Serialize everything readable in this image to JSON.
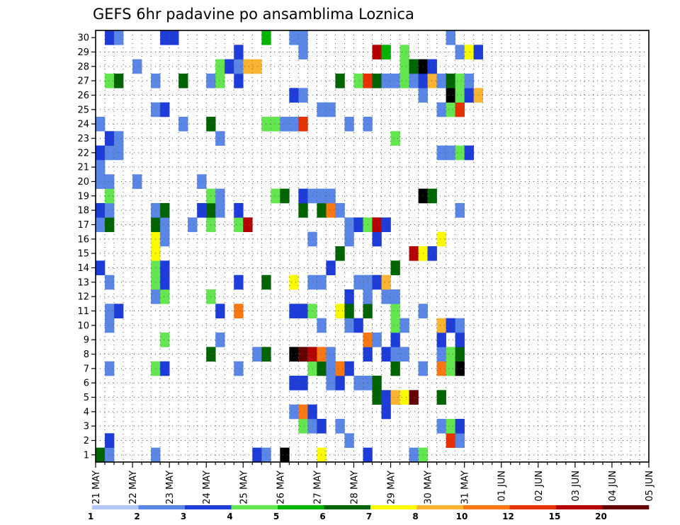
{
  "chart_data": {
    "type": "heatmap",
    "title": "GEFS 6hr padavine po ansamblima Loznica",
    "x_tick_labels": [
      "21 MAY",
      "22 MAY",
      "23 MAY",
      "24 MAY",
      "25 MAY",
      "26 MAY",
      "27 MAY",
      "28 MAY",
      "29 MAY",
      "30 MAY",
      "31 MAY",
      "01 JUN",
      "02 JUN",
      "03 JUN",
      "04 JUN",
      "05 JUN"
    ],
    "y_tick_labels": [
      "1",
      "2",
      "3",
      "4",
      "5",
      "6",
      "7",
      "8",
      "9",
      "10",
      "11",
      "12",
      "13",
      "14",
      "15",
      "16",
      "17",
      "18",
      "19",
      "20",
      "21",
      "22",
      "23",
      "24",
      "25",
      "26",
      "27",
      "28",
      "29",
      "30"
    ],
    "time_step_hours": 6,
    "members": 30,
    "legend": {
      "thresholds": [
        "1",
        "2",
        "3",
        "4",
        "5",
        "6",
        "7",
        "8",
        "10",
        "12",
        "15",
        "20"
      ],
      "colors": [
        "#b4c8f5",
        "#5a87e6",
        "#1e3cd7",
        "#64e650",
        "#00b400",
        "#006400",
        "#fafa00",
        "#fab432",
        "#fa7814",
        "#e63200",
        "#b40000",
        "#640000"
      ]
    },
    "cells": [
      [
        1,
        1,
        5
      ],
      [
        1,
        2,
        1
      ],
      [
        1,
        7,
        1
      ],
      [
        1,
        18,
        2
      ],
      [
        1,
        19,
        1
      ],
      [
        1,
        21,
        12
      ],
      [
        1,
        25,
        6
      ],
      [
        1,
        30,
        2
      ],
      [
        1,
        35,
        1
      ],
      [
        1,
        36,
        3
      ],
      [
        2,
        2,
        2
      ],
      [
        2,
        28,
        1
      ],
      [
        2,
        39,
        9
      ],
      [
        2,
        40,
        1
      ],
      [
        3,
        23,
        3
      ],
      [
        3,
        24,
        1
      ],
      [
        3,
        25,
        2
      ],
      [
        3,
        27,
        1
      ],
      [
        3,
        38,
        1
      ],
      [
        3,
        39,
        3
      ],
      [
        3,
        40,
        2
      ],
      [
        4,
        22,
        1
      ],
      [
        4,
        23,
        8
      ],
      [
        4,
        24,
        2
      ],
      [
        4,
        32,
        2
      ],
      [
        5,
        31,
        5
      ],
      [
        5,
        32,
        2
      ],
      [
        5,
        33,
        7
      ],
      [
        5,
        34,
        6
      ],
      [
        5,
        35,
        11
      ],
      [
        5,
        38,
        5
      ],
      [
        6,
        22,
        2
      ],
      [
        6,
        23,
        2
      ],
      [
        6,
        26,
        1
      ],
      [
        6,
        27,
        2
      ],
      [
        6,
        29,
        1
      ],
      [
        6,
        30,
        1
      ],
      [
        6,
        31,
        5
      ],
      [
        7,
        2,
        1
      ],
      [
        7,
        7,
        3
      ],
      [
        7,
        8,
        2
      ],
      [
        7,
        16,
        1
      ],
      [
        7,
        24,
        3
      ],
      [
        7,
        25,
        5
      ],
      [
        7,
        26,
        1
      ],
      [
        7,
        27,
        8
      ],
      [
        7,
        28,
        2
      ],
      [
        7,
        33,
        5
      ],
      [
        7,
        36,
        1
      ],
      [
        7,
        38,
        8
      ],
      [
        7,
        39,
        3
      ],
      [
        7,
        40,
        12
      ],
      [
        8,
        13,
        5
      ],
      [
        8,
        18,
        1
      ],
      [
        8,
        19,
        5
      ],
      [
        8,
        22,
        12
      ],
      [
        8,
        23,
        11
      ],
      [
        8,
        24,
        10
      ],
      [
        8,
        25,
        8
      ],
      [
        8,
        26,
        1
      ],
      [
        8,
        30,
        2
      ],
      [
        8,
        32,
        2
      ],
      [
        8,
        33,
        1
      ],
      [
        8,
        34,
        1
      ],
      [
        8,
        38,
        1
      ],
      [
        8,
        39,
        3
      ],
      [
        8,
        40,
        5
      ],
      [
        9,
        8,
        3
      ],
      [
        9,
        14,
        1
      ],
      [
        9,
        30,
        8
      ],
      [
        9,
        31,
        1
      ],
      [
        9,
        33,
        2
      ],
      [
        9,
        38,
        2
      ],
      [
        9,
        40,
        2
      ],
      [
        10,
        2,
        1
      ],
      [
        10,
        25,
        1
      ],
      [
        10,
        28,
        1
      ],
      [
        10,
        29,
        2
      ],
      [
        10,
        33,
        3
      ],
      [
        10,
        34,
        1
      ],
      [
        10,
        38,
        7
      ],
      [
        10,
        39,
        2
      ],
      [
        10,
        40,
        1
      ],
      [
        11,
        2,
        1
      ],
      [
        11,
        3,
        2
      ],
      [
        11,
        14,
        2
      ],
      [
        11,
        16,
        8
      ],
      [
        11,
        22,
        2
      ],
      [
        11,
        23,
        2
      ],
      [
        11,
        24,
        3
      ],
      [
        11,
        27,
        6
      ],
      [
        11,
        28,
        5
      ],
      [
        11,
        30,
        5
      ],
      [
        11,
        33,
        3
      ],
      [
        11,
        36,
        1
      ],
      [
        12,
        7,
        1
      ],
      [
        12,
        8,
        3
      ],
      [
        12,
        13,
        3
      ],
      [
        12,
        28,
        2
      ],
      [
        12,
        30,
        1
      ],
      [
        12,
        32,
        1
      ],
      [
        12,
        33,
        1
      ],
      [
        13,
        2,
        1
      ],
      [
        13,
        7,
        3
      ],
      [
        13,
        8,
        2
      ],
      [
        13,
        16,
        2
      ],
      [
        13,
        19,
        5
      ],
      [
        13,
        22,
        6
      ],
      [
        13,
        24,
        1
      ],
      [
        13,
        25,
        1
      ],
      [
        13,
        29,
        1
      ],
      [
        13,
        30,
        1
      ],
      [
        13,
        31,
        2
      ],
      [
        13,
        32,
        7
      ],
      [
        14,
        1,
        2
      ],
      [
        14,
        7,
        3
      ],
      [
        14,
        8,
        2
      ],
      [
        14,
        26,
        2
      ],
      [
        14,
        33,
        5
      ],
      [
        15,
        7,
        6
      ],
      [
        15,
        27,
        5
      ],
      [
        15,
        35,
        10
      ],
      [
        15,
        36,
        6
      ],
      [
        15,
        37,
        2
      ],
      [
        16,
        7,
        6
      ],
      [
        16,
        8,
        1
      ],
      [
        16,
        24,
        1
      ],
      [
        16,
        28,
        1
      ],
      [
        16,
        31,
        2
      ],
      [
        16,
        38,
        6
      ],
      [
        17,
        1,
        1
      ],
      [
        17,
        2,
        5
      ],
      [
        17,
        7,
        5
      ],
      [
        17,
        8,
        1
      ],
      [
        17,
        11,
        1
      ],
      [
        17,
        13,
        3
      ],
      [
        17,
        16,
        3
      ],
      [
        17,
        17,
        10
      ],
      [
        17,
        28,
        1
      ],
      [
        17,
        29,
        2
      ],
      [
        17,
        30,
        3
      ],
      [
        17,
        31,
        10
      ],
      [
        17,
        32,
        2
      ],
      [
        18,
        1,
        2
      ],
      [
        18,
        2,
        1
      ],
      [
        18,
        7,
        1
      ],
      [
        18,
        8,
        5
      ],
      [
        18,
        12,
        2
      ],
      [
        18,
        13,
        5
      ],
      [
        18,
        14,
        1
      ],
      [
        18,
        16,
        2
      ],
      [
        18,
        23,
        5
      ],
      [
        18,
        25,
        5
      ],
      [
        18,
        26,
        8
      ],
      [
        18,
        27,
        1
      ],
      [
        18,
        40,
        1
      ],
      [
        19,
        2,
        3
      ],
      [
        19,
        13,
        3
      ],
      [
        19,
        14,
        1
      ],
      [
        19,
        20,
        3
      ],
      [
        19,
        21,
        5
      ],
      [
        19,
        23,
        2
      ],
      [
        19,
        24,
        1
      ],
      [
        19,
        25,
        1
      ],
      [
        19,
        26,
        1
      ],
      [
        19,
        36,
        12
      ],
      [
        19,
        37,
        5
      ],
      [
        20,
        1,
        1
      ],
      [
        20,
        2,
        1
      ],
      [
        20,
        5,
        1
      ],
      [
        20,
        12,
        1
      ],
      [
        21,
        1,
        1
      ],
      [
        22,
        1,
        2
      ],
      [
        22,
        2,
        1
      ],
      [
        22,
        3,
        1
      ],
      [
        22,
        38,
        1
      ],
      [
        22,
        39,
        1
      ],
      [
        22,
        40,
        3
      ],
      [
        22,
        41,
        2
      ],
      [
        23,
        2,
        2
      ],
      [
        23,
        3,
        1
      ],
      [
        23,
        14,
        1
      ],
      [
        23,
        33,
        3
      ],
      [
        24,
        1,
        1
      ],
      [
        24,
        10,
        1
      ],
      [
        24,
        13,
        5
      ],
      [
        24,
        19,
        3
      ],
      [
        24,
        20,
        3
      ],
      [
        24,
        21,
        1
      ],
      [
        24,
        22,
        1
      ],
      [
        24,
        23,
        9
      ],
      [
        24,
        28,
        1
      ],
      [
        24,
        30,
        1
      ],
      [
        25,
        7,
        1
      ],
      [
        25,
        8,
        2
      ],
      [
        25,
        25,
        1
      ],
      [
        25,
        26,
        1
      ],
      [
        25,
        38,
        1
      ],
      [
        25,
        39,
        3
      ],
      [
        25,
        40,
        9
      ],
      [
        26,
        22,
        2
      ],
      [
        26,
        23,
        1
      ],
      [
        26,
        36,
        1
      ],
      [
        26,
        39,
        12
      ],
      [
        26,
        40,
        3
      ],
      [
        26,
        41,
        2
      ],
      [
        26,
        42,
        7
      ],
      [
        27,
        2,
        3
      ],
      [
        27,
        3,
        5
      ],
      [
        27,
        7,
        1
      ],
      [
        27,
        10,
        5
      ],
      [
        27,
        13,
        1
      ],
      [
        27,
        14,
        3
      ],
      [
        27,
        16,
        2
      ],
      [
        27,
        27,
        5
      ],
      [
        27,
        29,
        3
      ],
      [
        27,
        30,
        9
      ],
      [
        27,
        31,
        5
      ],
      [
        27,
        32,
        1
      ],
      [
        27,
        33,
        1
      ],
      [
        27,
        34,
        3
      ],
      [
        27,
        35,
        1
      ],
      [
        27,
        36,
        2
      ],
      [
        27,
        37,
        7
      ],
      [
        27,
        38,
        1
      ],
      [
        27,
        39,
        5
      ],
      [
        27,
        40,
        3
      ],
      [
        27,
        41,
        1
      ],
      [
        28,
        5,
        1
      ],
      [
        28,
        14,
        3
      ],
      [
        28,
        15,
        2
      ],
      [
        28,
        16,
        1
      ],
      [
        28,
        17,
        7
      ],
      [
        28,
        18,
        7
      ],
      [
        28,
        34,
        3
      ],
      [
        28,
        35,
        5
      ],
      [
        28,
        36,
        12
      ],
      [
        28,
        37,
        2
      ],
      [
        29,
        16,
        2
      ],
      [
        29,
        23,
        1
      ],
      [
        29,
        31,
        10
      ],
      [
        29,
        32,
        4
      ],
      [
        29,
        34,
        3
      ],
      [
        29,
        40,
        1
      ],
      [
        29,
        41,
        6
      ],
      [
        29,
        42,
        2
      ],
      [
        30,
        2,
        2
      ],
      [
        30,
        3,
        1
      ],
      [
        30,
        8,
        2
      ],
      [
        30,
        9,
        2
      ],
      [
        30,
        19,
        4
      ],
      [
        30,
        22,
        1
      ],
      [
        30,
        23,
        1
      ],
      [
        30,
        39,
        1
      ]
    ]
  }
}
